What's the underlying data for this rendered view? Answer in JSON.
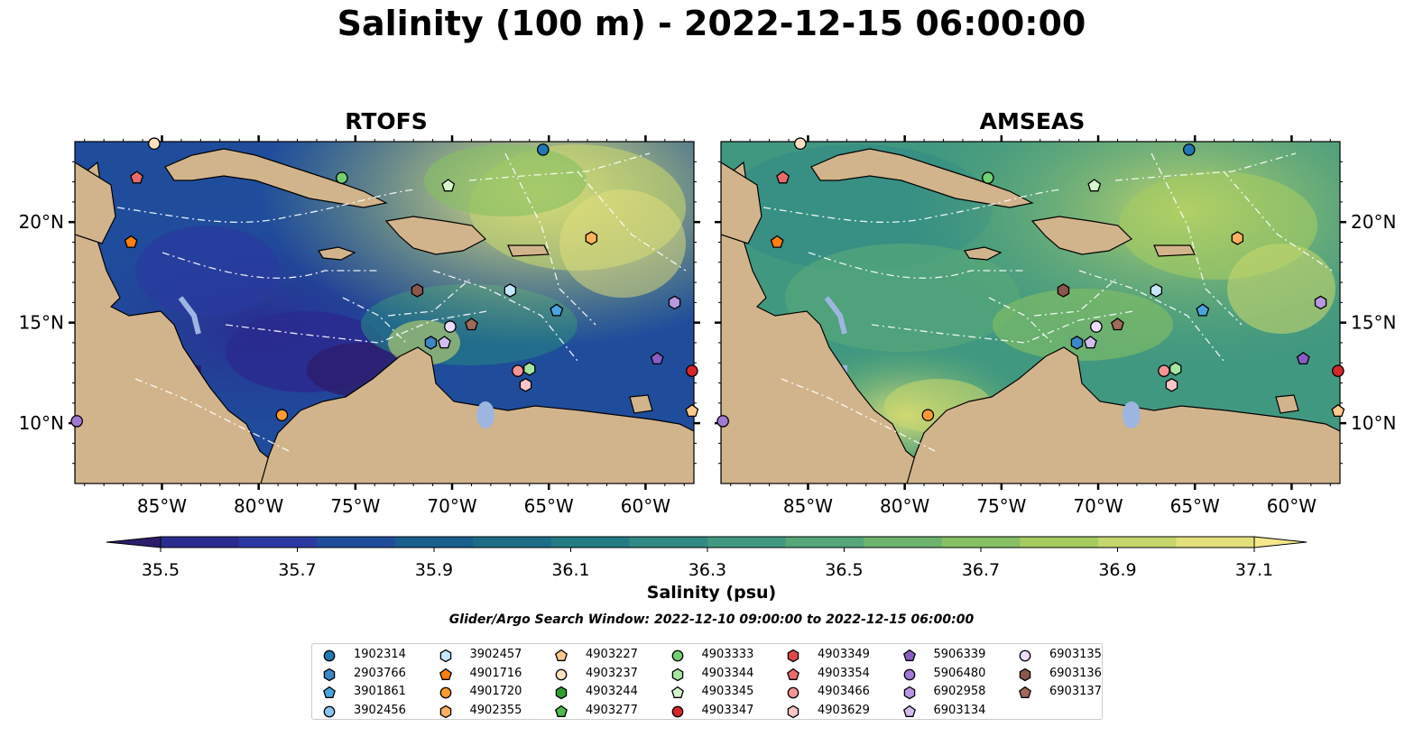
{
  "title": "Salinity (100 m) - 2022-12-15 06:00:00",
  "panels": [
    {
      "title": "RTOFS"
    },
    {
      "title": "AMSEAS"
    }
  ],
  "lat_labels": [
    "20°N",
    "15°N",
    "10°N"
  ],
  "lon_labels": [
    "85°W",
    "80°W",
    "75°W",
    "70°W",
    "65°W",
    "60°W"
  ],
  "colorbar": {
    "label": "Salinity (psu)",
    "ticks": [
      "35.5",
      "35.7",
      "35.9",
      "36.1",
      "36.3",
      "36.5",
      "36.7",
      "36.9",
      "37.1"
    ],
    "colors": [
      "#2c1d6b",
      "#2a2b8f",
      "#2a3aa0",
      "#1f4d9c",
      "#195f8f",
      "#1b6d88",
      "#237b86",
      "#318a85",
      "#419880",
      "#55a679",
      "#6cb46d",
      "#86c063",
      "#a5cc61",
      "#c4d66d",
      "#e3df7b",
      "#f5e88a"
    ]
  },
  "search_window": "Glider/Argo Search Window: 2022-12-10 09:00:00 to 2022-12-15 06:00:00",
  "legend": [
    {
      "id": "1902314",
      "marker": "circle",
      "color": "#1f77b4"
    },
    {
      "id": "2903766",
      "marker": "hexagon",
      "color": "#3a87c8"
    },
    {
      "id": "3901861",
      "marker": "pentagon",
      "color": "#4aa3df"
    },
    {
      "id": "3902456",
      "marker": "circle",
      "color": "#88c4f0"
    },
    {
      "id": "3902457",
      "marker": "hexagon",
      "color": "#c6e6fb"
    },
    {
      "id": "4901716",
      "marker": "pentagon",
      "color": "#ff7f0e"
    },
    {
      "id": "4901720",
      "marker": "circle",
      "color": "#ff9a33"
    },
    {
      "id": "4902355",
      "marker": "hexagon",
      "color": "#ffb15e"
    },
    {
      "id": "4903227",
      "marker": "pentagon",
      "color": "#ffc98e"
    },
    {
      "id": "4903237",
      "marker": "circle",
      "color": "#ffe1c0"
    },
    {
      "id": "4903244",
      "marker": "hexagon",
      "color": "#2ca02c"
    },
    {
      "id": "4903277",
      "marker": "pentagon",
      "color": "#4cbb4c"
    },
    {
      "id": "4903333",
      "marker": "circle",
      "color": "#72cf72"
    },
    {
      "id": "4903344",
      "marker": "hexagon",
      "color": "#a6e6a0"
    },
    {
      "id": "4903345",
      "marker": "pentagon",
      "color": "#d5f5cc"
    },
    {
      "id": "4903347",
      "marker": "circle",
      "color": "#d62728"
    },
    {
      "id": "4903349",
      "marker": "hexagon",
      "color": "#e04848"
    },
    {
      "id": "4903354",
      "marker": "pentagon",
      "color": "#ea6a6a"
    },
    {
      "id": "4903466",
      "marker": "circle",
      "color": "#f49494"
    },
    {
      "id": "4903629",
      "marker": "hexagon",
      "color": "#fcc5c5"
    },
    {
      "id": "5906339",
      "marker": "pentagon",
      "color": "#8a5cc4"
    },
    {
      "id": "5906480",
      "marker": "circle",
      "color": "#a07ad2"
    },
    {
      "id": "6902958",
      "marker": "hexagon",
      "color": "#b898e0"
    },
    {
      "id": "6903134",
      "marker": "pentagon",
      "color": "#d3bdf0"
    },
    {
      "id": "6903135",
      "marker": "circle",
      "color": "#eddcfb"
    },
    {
      "id": "6903136",
      "marker": "hexagon",
      "color": "#8c564b"
    },
    {
      "id": "6903137",
      "marker": "pentagon",
      "color": "#a0695a"
    }
  ],
  "chart_data": [
    {
      "type": "heatmap",
      "title": "RTOFS",
      "xlim": [
        -89.5,
        -57.5
      ],
      "ylim": [
        7,
        24
      ],
      "xticks": [
        -85,
        -80,
        -75,
        -70,
        -65,
        -60
      ],
      "yticks": [
        10,
        15,
        20
      ],
      "colorbar_range": [
        35.5,
        37.1
      ],
      "observations": [
        {
          "id": "1902314",
          "lon": -65.3,
          "lat": 23.6
        },
        {
          "id": "4901716",
          "lon": -86.6,
          "lat": 19.0
        },
        {
          "id": "4901720",
          "lon": -78.8,
          "lat": 10.4
        },
        {
          "id": "4902355",
          "lon": -62.8,
          "lat": 19.2
        },
        {
          "id": "4903237",
          "lon": -85.4,
          "lat": 23.9
        },
        {
          "id": "4903333",
          "lon": -75.7,
          "lat": 22.2
        },
        {
          "id": "4903344",
          "lon": -66.0,
          "lat": 12.7
        },
        {
          "id": "4903345",
          "lon": -70.2,
          "lat": 21.8
        },
        {
          "id": "4903347",
          "lon": -57.6,
          "lat": 12.6
        },
        {
          "id": "4903354",
          "lon": -86.3,
          "lat": 22.2
        },
        {
          "id": "4903466",
          "lon": -66.6,
          "lat": 12.6
        },
        {
          "id": "4903629",
          "lon": -66.2,
          "lat": 11.9
        },
        {
          "id": "3902457",
          "lon": -67.0,
          "lat": 16.6
        },
        {
          "id": "3901861",
          "lon": -64.6,
          "lat": 15.6
        },
        {
          "id": "2903766",
          "lon": -71.1,
          "lat": 14.0
        },
        {
          "id": "6903134",
          "lon": -70.4,
          "lat": 14.0
        },
        {
          "id": "6903135",
          "lon": -70.1,
          "lat": 14.8
        },
        {
          "id": "6903136",
          "lon": -71.8,
          "lat": 16.6
        },
        {
          "id": "6903137",
          "lon": -69.0,
          "lat": 14.9
        },
        {
          "id": "5906339",
          "lon": -59.4,
          "lat": 13.2
        },
        {
          "id": "6902958",
          "lon": -58.5,
          "lat": 16.0
        },
        {
          "id": "5906480",
          "lon": -89.4,
          "lat": 10.1
        },
        {
          "id": "4903227",
          "lon": -57.6,
          "lat": 10.6
        }
      ]
    },
    {
      "type": "heatmap",
      "title": "AMSEAS",
      "xlim": [
        -89.5,
        -57.5
      ],
      "ylim": [
        7,
        24
      ],
      "xticks": [
        -85,
        -80,
        -75,
        -70,
        -65,
        -60
      ],
      "yticks": [
        10,
        15,
        20
      ],
      "colorbar_range": [
        35.5,
        37.1
      ],
      "observations": "same as RTOFS"
    }
  ]
}
